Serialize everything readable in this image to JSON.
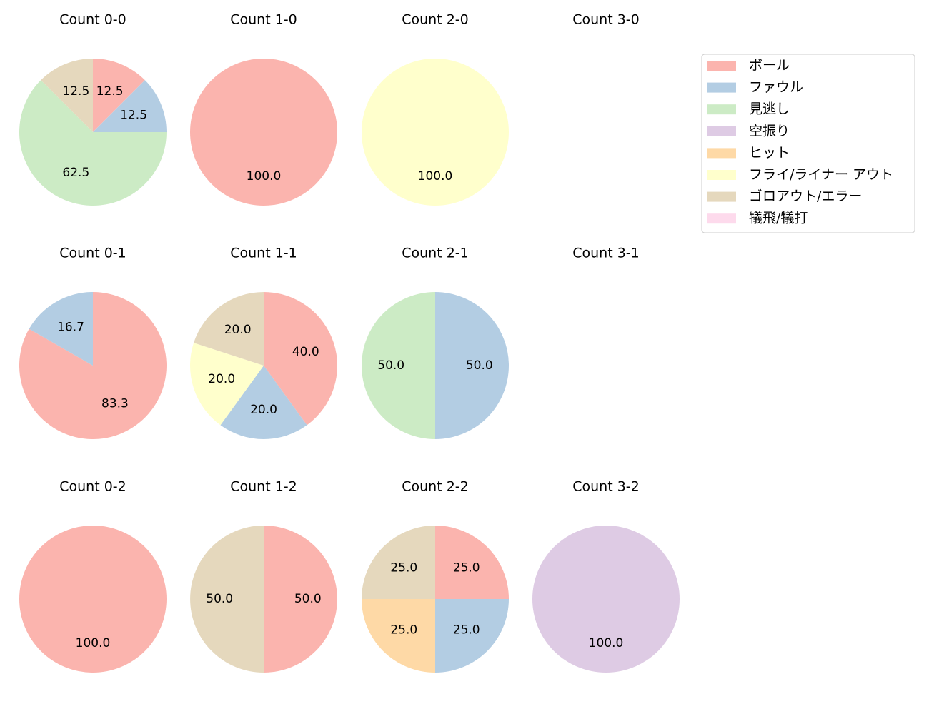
{
  "chart_data": [
    {
      "type": "pie",
      "title": "Count 0-0",
      "categories": [
        "ボール",
        "ファウル",
        "見逃し",
        "ゴロアウト/エラー"
      ],
      "values": [
        12.5,
        12.5,
        62.5,
        12.5
      ],
      "colors": [
        "#fbb4ae",
        "#b3cde3",
        "#ccebc5",
        "#e5d8bd"
      ]
    },
    {
      "type": "pie",
      "title": "Count 1-0",
      "categories": [
        "ボール"
      ],
      "values": [
        100
      ],
      "value_labels": [
        "100.0"
      ],
      "colors": [
        "#fbb4ae"
      ]
    },
    {
      "type": "pie",
      "title": "Count 2-0",
      "categories": [
        "フライ/ライナー アウト"
      ],
      "values": [
        100
      ],
      "value_labels": [
        "100.0"
      ],
      "colors": [
        "#ffffcc"
      ]
    },
    {
      "type": "pie",
      "title": "Count 3-0"
    },
    {
      "type": "pie",
      "title": "Count 0-1",
      "categories": [
        "ボール",
        "ファウル"
      ],
      "values": [
        83.3,
        16.7
      ],
      "colors": [
        "#fbb4ae",
        "#b3cde3"
      ]
    },
    {
      "type": "pie",
      "title": "Count 1-1",
      "categories": [
        "ボール",
        "ファウル",
        "フライ/ライナー アウト",
        "ゴロアウト/エラー"
      ],
      "values": [
        40,
        20,
        20,
        20
      ],
      "value_labels": [
        "40.0",
        "20.0",
        "20.0",
        "20.0"
      ],
      "colors": [
        "#fbb4ae",
        "#b3cde3",
        "#ffffcc",
        "#e5d8bd"
      ]
    },
    {
      "type": "pie",
      "title": "Count 2-1",
      "categories": [
        "ファウル",
        "見逃し"
      ],
      "values": [
        50,
        50
      ],
      "value_labels": [
        "50.0",
        "50.0"
      ],
      "colors": [
        "#b3cde3",
        "#ccebc5"
      ]
    },
    {
      "type": "pie",
      "title": "Count 3-1"
    },
    {
      "type": "pie",
      "title": "Count 0-2",
      "categories": [
        "ボール"
      ],
      "values": [
        100
      ],
      "value_labels": [
        "100.0"
      ],
      "colors": [
        "#fbb4ae"
      ]
    },
    {
      "type": "pie",
      "title": "Count 1-2",
      "categories": [
        "ボール",
        "ゴロアウト/エラー"
      ],
      "values": [
        50,
        50
      ],
      "value_labels": [
        "50.0",
        "50.0"
      ],
      "colors": [
        "#fbb4ae",
        "#e5d8bd"
      ]
    },
    {
      "type": "pie",
      "title": "Count 2-2",
      "categories": [
        "ボール",
        "ファウル",
        "ヒット",
        "ゴロアウト/エラー"
      ],
      "values": [
        25,
        25,
        25,
        25
      ],
      "value_labels": [
        "25.0",
        "25.0",
        "25.0",
        "25.0"
      ],
      "colors": [
        "#fbb4ae",
        "#b3cde3",
        "#fed9a6",
        "#e5d8bd"
      ]
    },
    {
      "type": "pie",
      "title": "Count 3-2",
      "categories": [
        "空振り"
      ],
      "values": [
        100
      ],
      "value_labels": [
        "100.0"
      ],
      "colors": [
        "#decbe4"
      ]
    }
  ],
  "legend": {
    "position": "upper right",
    "labels": [
      "ボール",
      "ファウル",
      "見逃し",
      "空振り",
      "ヒット",
      "フライ/ライナー アウト",
      "ゴロアウト/エラー",
      "犠飛/犠打"
    ],
    "colors": [
      "#fbb4ae",
      "#b3cde3",
      "#ccebc5",
      "#decbe4",
      "#fed9a6",
      "#ffffcc",
      "#e5d8bd",
      "#fddaec"
    ]
  }
}
